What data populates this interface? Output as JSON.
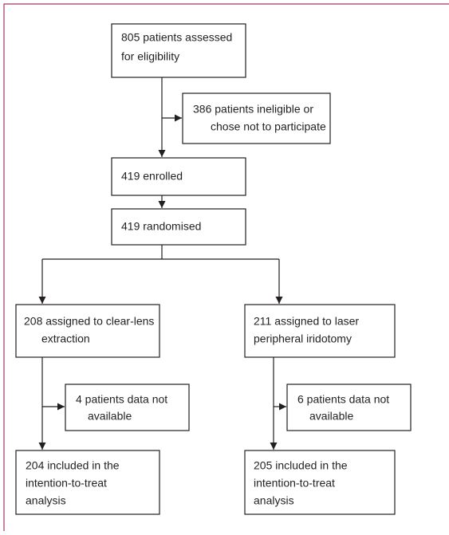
{
  "nodes": [
    {
      "lines": [
        "805 patients assessed",
        "for eligibility"
      ]
    },
    {
      "lines": [
        "386 patients ineligible or",
        "chose not to participate"
      ]
    },
    {
      "lines": [
        "419 enrolled"
      ]
    },
    {
      "lines": [
        "419 randomised"
      ]
    },
    {
      "lines": [
        "208 assigned to clear-lens",
        "extraction"
      ]
    },
    {
      "lines": [
        "211 assigned to laser",
        "peripheral iridotomy"
      ]
    },
    {
      "lines": [
        "4 patients data not",
        "available"
      ]
    },
    {
      "lines": [
        "6 patients data not",
        "available"
      ]
    },
    {
      "lines": [
        "204 included in the",
        "intention-to-treat",
        "analysis"
      ]
    },
    {
      "lines": [
        "205 included in the",
        "intention-to-treat",
        "analysis"
      ]
    }
  ]
}
